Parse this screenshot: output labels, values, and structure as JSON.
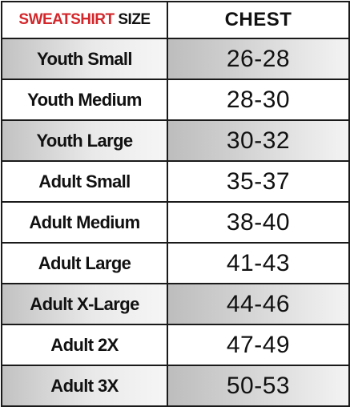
{
  "header": {
    "size_accent": "SWEATSHIRT",
    "size_plain": " SIZE",
    "chest": "CHEST"
  },
  "colors": {
    "accent": "#d3272b",
    "border": "#1a1a1a",
    "shade": "#c9c9c9"
  },
  "rows": [
    {
      "size": "Youth Small",
      "chest": "26-28",
      "shaded": true
    },
    {
      "size": "Youth Medium",
      "chest": "28-30",
      "shaded": false
    },
    {
      "size": "Youth Large",
      "chest": "30-32",
      "shaded": true
    },
    {
      "size": "Adult Small",
      "chest": "35-37",
      "shaded": false
    },
    {
      "size": "Adult Medium",
      "chest": "38-40",
      "shaded": false
    },
    {
      "size": "Adult Large",
      "chest": "41-43",
      "shaded": false
    },
    {
      "size": "Adult X-Large",
      "chest": "44-46",
      "shaded": true
    },
    {
      "size": "Adult 2X",
      "chest": "47-49",
      "shaded": false
    },
    {
      "size": "Adult 3X",
      "chest": "50-53",
      "shaded": true
    }
  ]
}
